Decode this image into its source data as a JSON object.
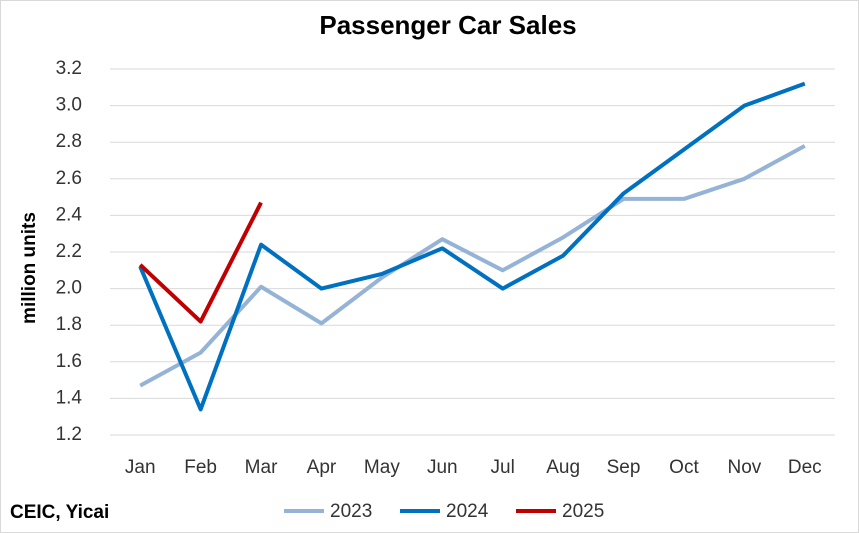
{
  "chart_data": {
    "type": "line",
    "title": "Passenger Car Sales",
    "y_label": "million units",
    "source": "CEIC, Yicai",
    "categories": [
      "Jan",
      "Feb",
      "Mar",
      "Apr",
      "May",
      "Jun",
      "Jul",
      "Aug",
      "Sep",
      "Oct",
      "Nov",
      "Dec"
    ],
    "series": [
      {
        "name": "2023",
        "color": "#95b3d7",
        "values": [
          1.47,
          1.65,
          2.01,
          1.81,
          2.06,
          2.27,
          2.1,
          2.28,
          2.49,
          2.49,
          2.6,
          2.78
        ]
      },
      {
        "name": "2024",
        "color": "#0070c0",
        "values": [
          2.12,
          1.34,
          2.24,
          2.0,
          2.08,
          2.22,
          2.0,
          2.18,
          2.52,
          2.76,
          3.0,
          3.12
        ]
      },
      {
        "name": "2025",
        "color": "#c00000",
        "values": [
          2.13,
          1.82,
          2.47,
          null,
          null,
          null,
          null,
          null,
          null,
          null,
          null,
          null
        ]
      }
    ],
    "ylim": [
      1.2,
      3.2
    ],
    "yticks": [
      1.2,
      1.4,
      1.6,
      1.8,
      {
        "value": 2,
        "label": "2.0"
      },
      2.2,
      2.4,
      2.6,
      2.8,
      {
        "value": 3,
        "label": "3.0"
      },
      3.2
    ],
    "grid": true,
    "legend": "bottom"
  }
}
